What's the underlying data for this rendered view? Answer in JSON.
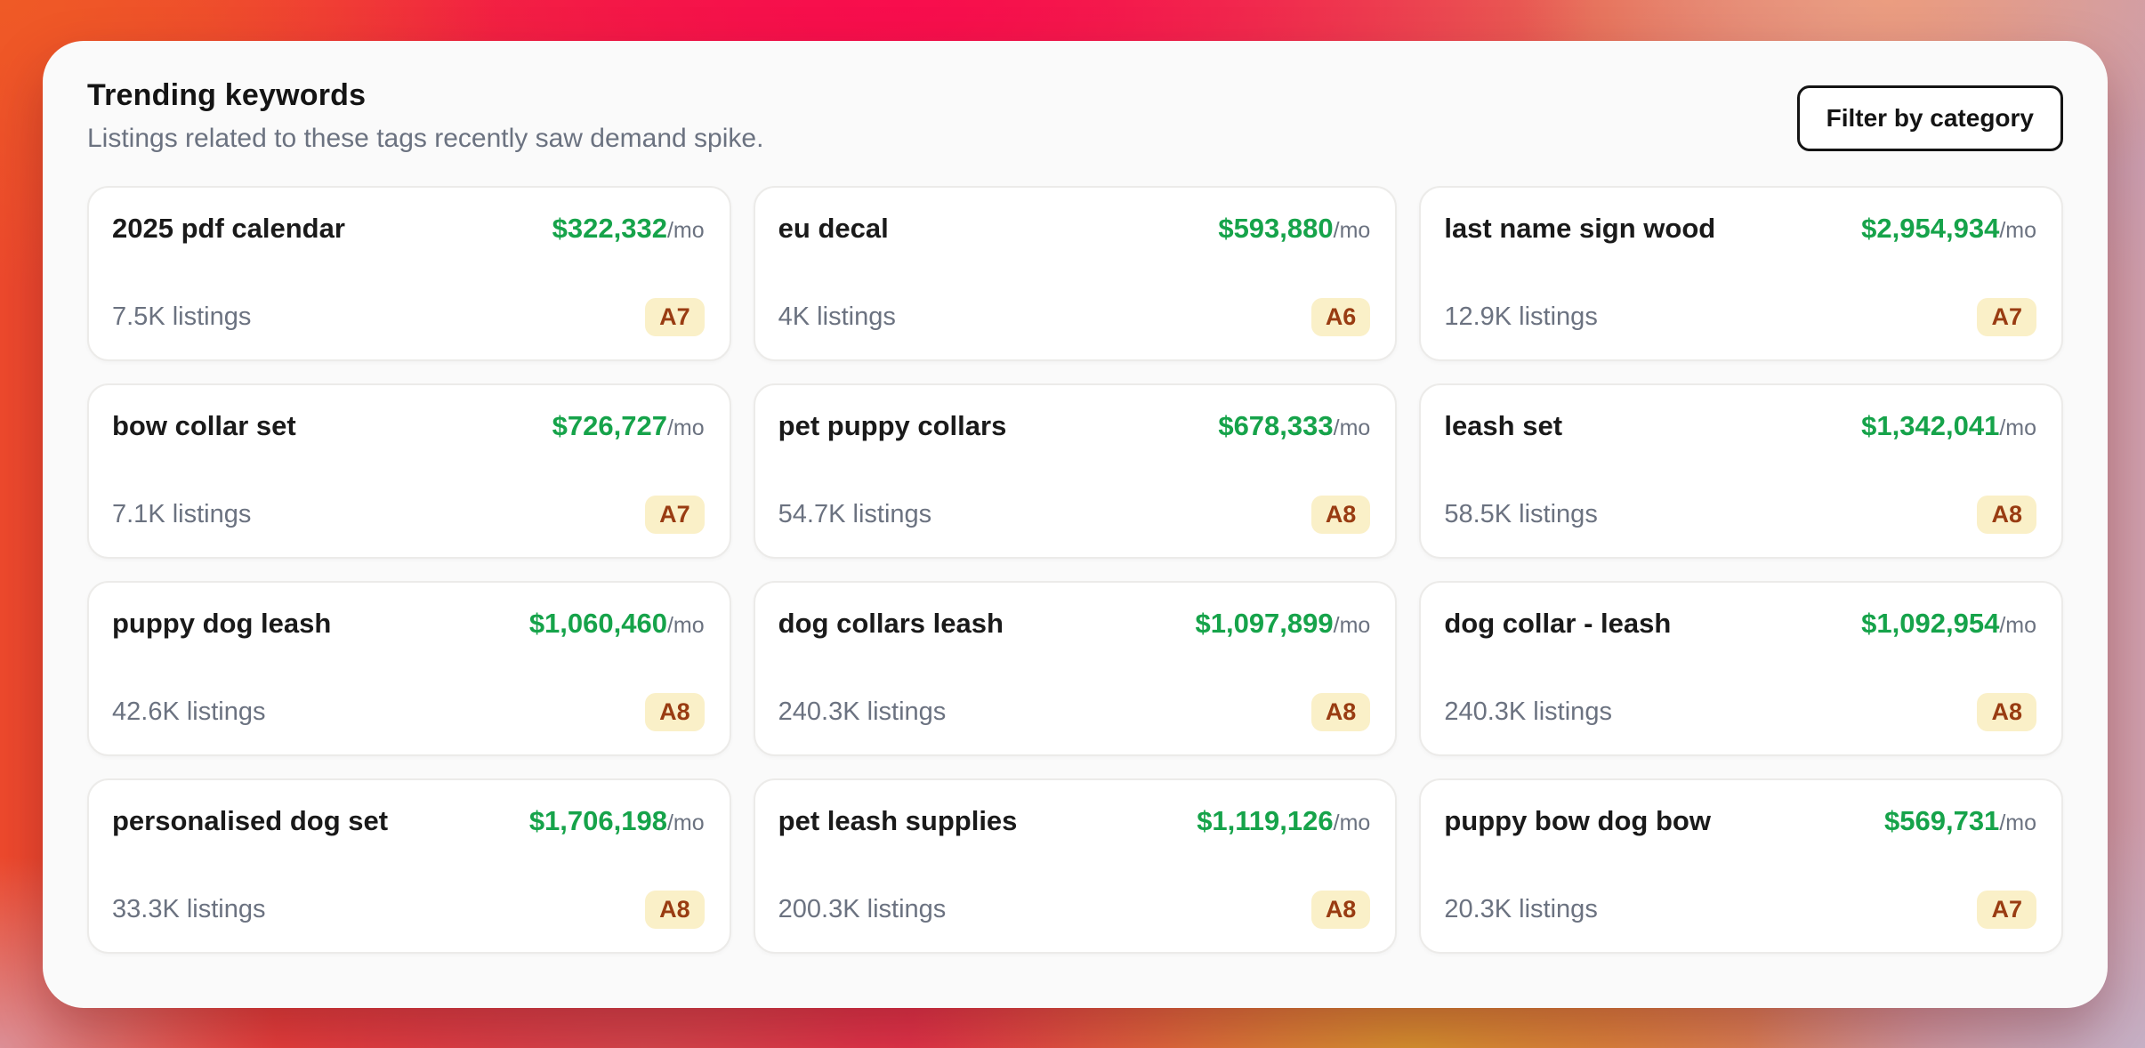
{
  "header": {
    "title": "Trending keywords",
    "subtitle": "Listings related to these tags recently saw demand spike.",
    "filter_button_label": "Filter by category"
  },
  "cards": [
    {
      "keyword": "2025 pdf calendar",
      "revenue": "$322,332",
      "per": "/mo",
      "listings": "7.5K listings",
      "grade": "A7"
    },
    {
      "keyword": "eu decal",
      "revenue": "$593,880",
      "per": "/mo",
      "listings": "4K listings",
      "grade": "A6"
    },
    {
      "keyword": "last name sign wood",
      "revenue": "$2,954,934",
      "per": "/mo",
      "listings": "12.9K listings",
      "grade": "A7"
    },
    {
      "keyword": "bow collar set",
      "revenue": "$726,727",
      "per": "/mo",
      "listings": "7.1K listings",
      "grade": "A7"
    },
    {
      "keyword": "pet puppy collars",
      "revenue": "$678,333",
      "per": "/mo",
      "listings": "54.7K listings",
      "grade": "A8"
    },
    {
      "keyword": "leash set",
      "revenue": "$1,342,041",
      "per": "/mo",
      "listings": "58.5K listings",
      "grade": "A8"
    },
    {
      "keyword": "puppy dog leash",
      "revenue": "$1,060,460",
      "per": "/mo",
      "listings": "42.6K listings",
      "grade": "A8"
    },
    {
      "keyword": "dog collars leash",
      "revenue": "$1,097,899",
      "per": "/mo",
      "listings": "240.3K listings",
      "grade": "A8"
    },
    {
      "keyword": "dog collar - leash",
      "revenue": "$1,092,954",
      "per": "/mo",
      "listings": "240.3K listings",
      "grade": "A8"
    },
    {
      "keyword": "personalised dog set",
      "revenue": "$1,706,198",
      "per": "/mo",
      "listings": "33.3K listings",
      "grade": "A8"
    },
    {
      "keyword": "pet leash supplies",
      "revenue": "$1,119,126",
      "per": "/mo",
      "listings": "200.3K listings",
      "grade": "A8"
    },
    {
      "keyword": "puppy bow dog bow",
      "revenue": "$569,731",
      "per": "/mo",
      "listings": "20.3K listings",
      "grade": "A7"
    }
  ],
  "colors": {
    "revenue_green": "#16a34a",
    "badge_background": "#faf0c8",
    "badge_text": "#993c12",
    "muted_text": "#6b7280"
  }
}
